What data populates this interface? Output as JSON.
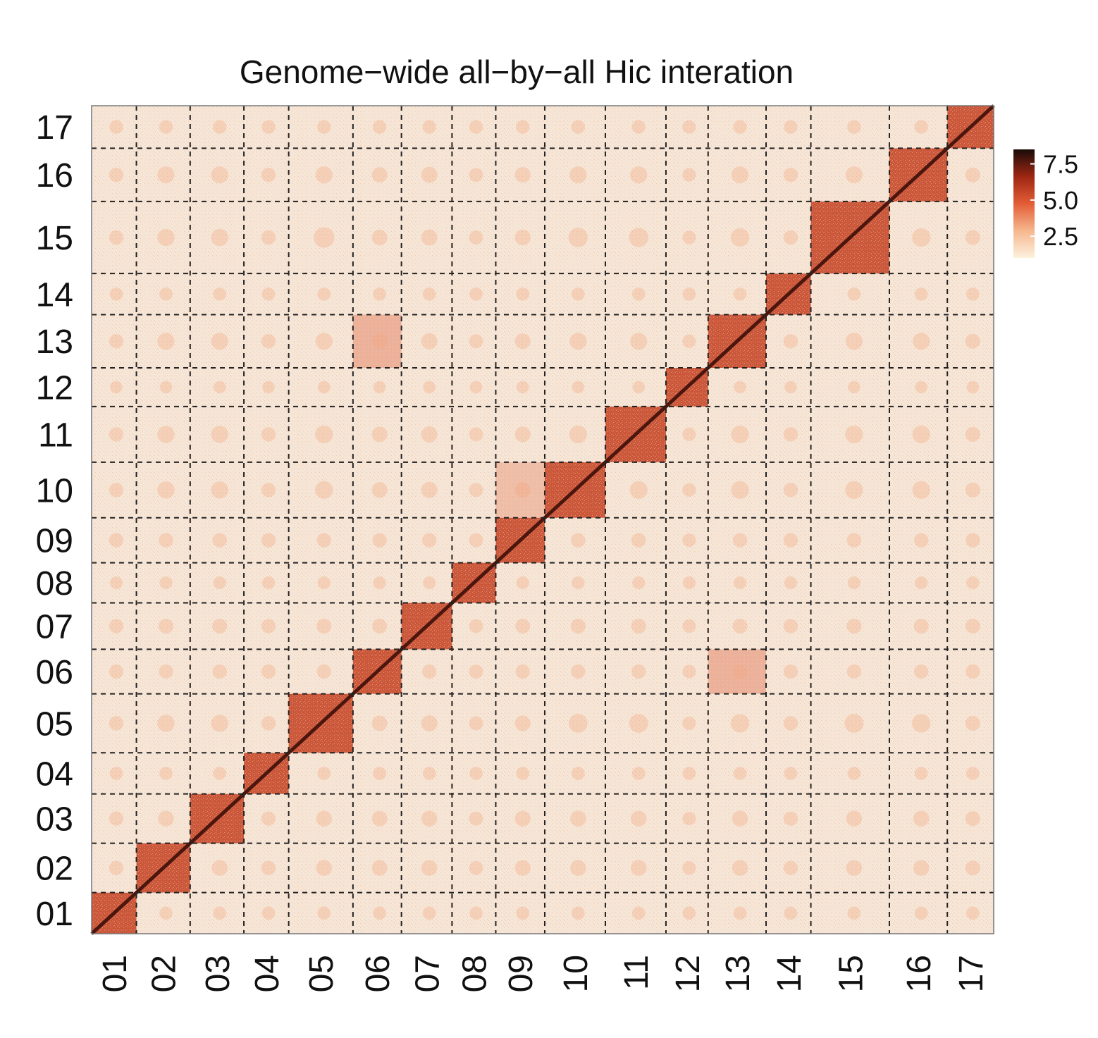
{
  "chart_data": {
    "type": "heatmap",
    "title": "Genome−wide all−by−all Hic interation",
    "xlabel": "",
    "ylabel": "",
    "chromosomes": [
      "01",
      "02",
      "03",
      "04",
      "05",
      "06",
      "07",
      "08",
      "09",
      "10",
      "11",
      "12",
      "13",
      "14",
      "15",
      "16",
      "17"
    ],
    "relative_lengths": [
      0.85,
      1.02,
      1.02,
      0.85,
      1.22,
      0.92,
      0.96,
      0.83,
      0.93,
      1.15,
      1.15,
      0.8,
      1.1,
      0.85,
      1.49,
      1.1,
      0.88
    ],
    "grid": "dashed lines at chromosome boundaries",
    "colorbar": {
      "ticks": [
        "7.5",
        "5.0",
        "2.5"
      ],
      "min": 1.0,
      "max": 8.5,
      "colors": [
        "#fdf1dd",
        "#f6b78e",
        "#e35d36",
        "#9e2612",
        "#1a0c0a"
      ]
    },
    "background_color": "#eeecea",
    "intra_chromosomal_level": 5.5,
    "diagonal_level": 7.8,
    "background_level": 1.5,
    "notable_off_diagonal_blocks": [
      {
        "row": "13",
        "col": "06",
        "level": 4.0
      },
      {
        "row": "10",
        "col": "09",
        "level": 3.5
      },
      {
        "row": "06",
        "col": "13",
        "level": 4.0
      }
    ]
  }
}
